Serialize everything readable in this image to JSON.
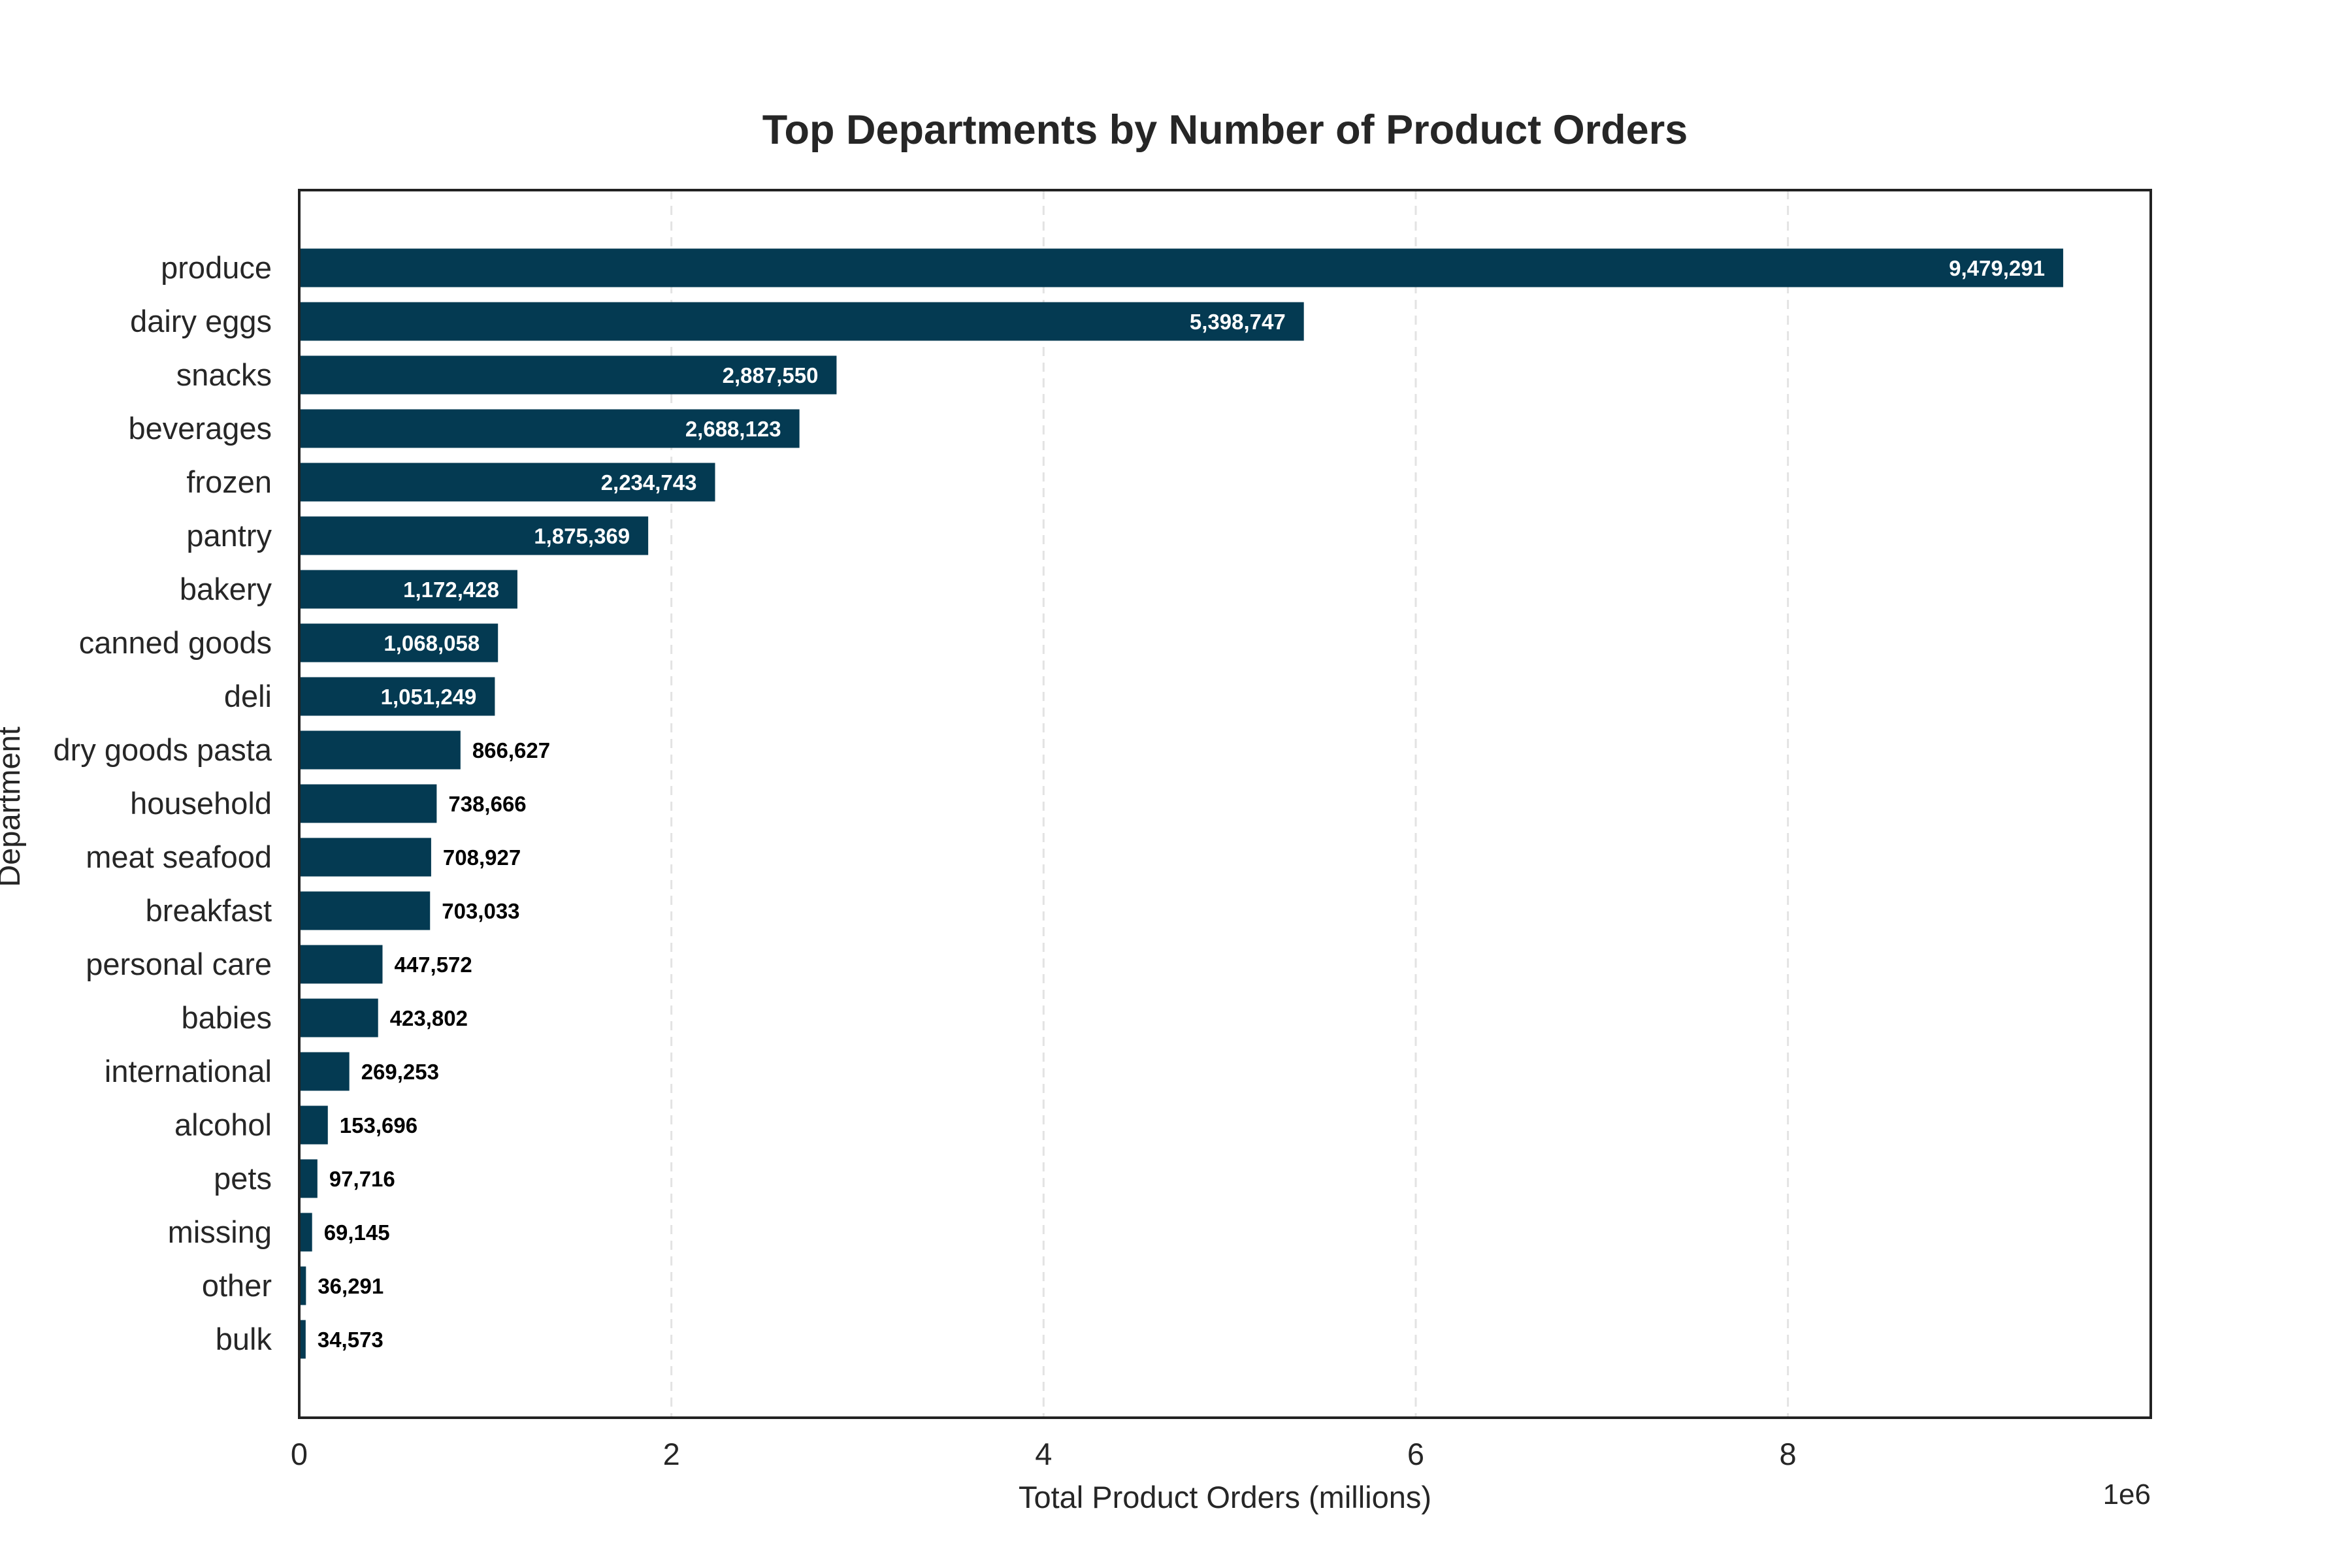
{
  "chart_data": {
    "type": "bar",
    "orientation": "horizontal",
    "title": "Top Departments by Number of Product Orders",
    "xlabel": "Total Product Orders (millions)",
    "ylabel": "Department",
    "x_offset_label": "1e6",
    "xlim": [
      0,
      9950000
    ],
    "xticks": [
      0,
      2000000,
      4000000,
      6000000,
      8000000
    ],
    "xtick_labels": [
      "0",
      "2",
      "4",
      "6",
      "8"
    ],
    "grid": "x-dashed",
    "bar_color": "#043a52",
    "categories": [
      "produce",
      "dairy eggs",
      "snacks",
      "beverages",
      "frozen",
      "pantry",
      "bakery",
      "canned goods",
      "deli",
      "dry goods pasta",
      "household",
      "meat seafood",
      "breakfast",
      "personal care",
      "babies",
      "international",
      "alcohol",
      "pets",
      "missing",
      "other",
      "bulk"
    ],
    "values": [
      9479291,
      5398747,
      2887550,
      2688123,
      2234743,
      1875369,
      1172428,
      1068058,
      1051249,
      866627,
      738666,
      708927,
      703033,
      447572,
      423802,
      269253,
      153696,
      97716,
      69145,
      36291,
      34573
    ],
    "data_labels": [
      "9,479,291",
      "5,398,747",
      "2,887,550",
      "2,688,123",
      "2,234,743",
      "1,875,369",
      "1,172,428",
      "1,068,058",
      "1,051,249",
      "866,627",
      "738,666",
      "708,927",
      "703,033",
      "447,572",
      "423,802",
      "269,253",
      "153,696",
      "97,716",
      "69,145",
      "36,291",
      "34,573"
    ],
    "label_inside_threshold": 1000000
  }
}
